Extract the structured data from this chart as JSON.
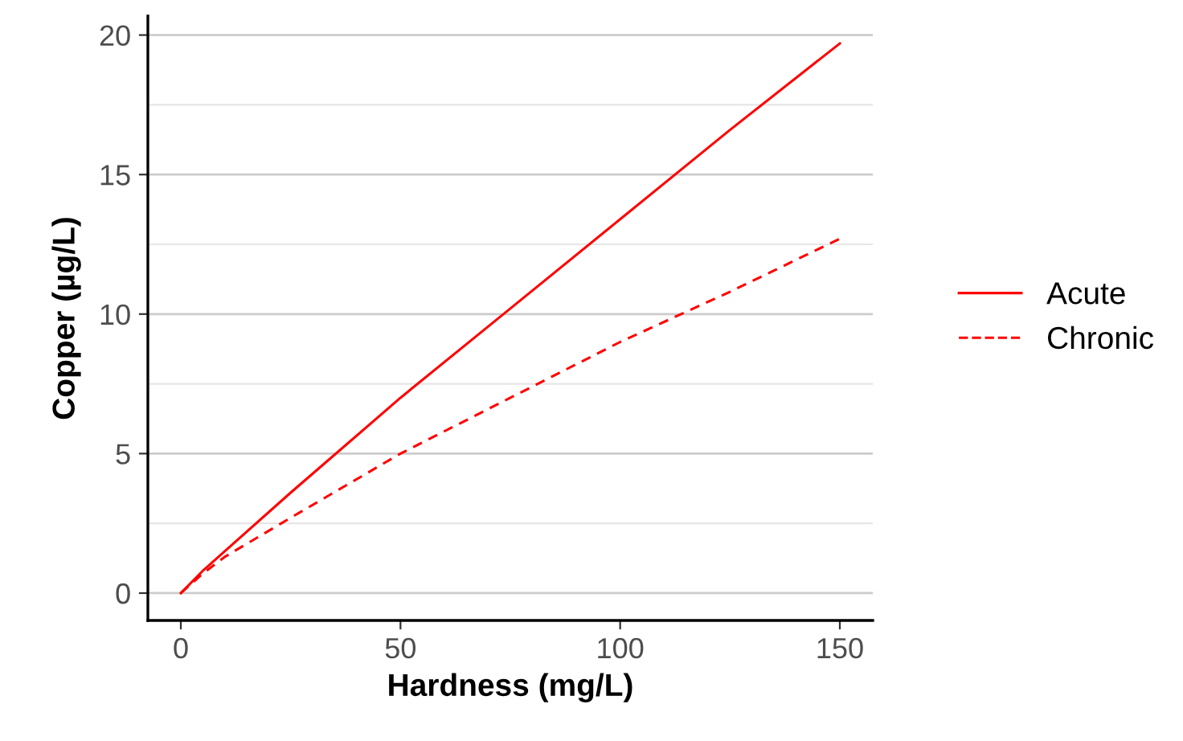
{
  "chart_data": {
    "type": "line",
    "xlabel": "Hardness (mg/L)",
    "ylabel": "Copper (µg/L)",
    "x": [
      0,
      5,
      10,
      25,
      50,
      75,
      100,
      125,
      150
    ],
    "series": [
      {
        "name": "Acute",
        "color": "#ff0000",
        "line_style": "solid",
        "values": [
          0,
          0.8,
          1.5,
          3.6,
          7.0,
          10.2,
          13.4,
          16.6,
          19.7
        ]
      },
      {
        "name": "Chronic",
        "color": "#ff0000",
        "line_style": "dashed",
        "values": [
          0,
          0.7,
          1.3,
          2.7,
          5.0,
          7.0,
          9.0,
          10.8,
          12.7
        ]
      }
    ],
    "xlim": [
      -7.5,
      157.5
    ],
    "ylim": [
      -0.98,
      20.68
    ],
    "xticks": [
      0,
      50,
      100,
      150
    ],
    "yticks": [
      0,
      {
        "value": 2.5,
        "label": null
      },
      5,
      {
        "value": 7.5,
        "label": null
      },
      10,
      {
        "value": 12.5,
        "label": null
      },
      15,
      {
        "value": 17.5,
        "label": null
      },
      20
    ],
    "grid": "y",
    "legend": "right",
    "marker": "none"
  }
}
